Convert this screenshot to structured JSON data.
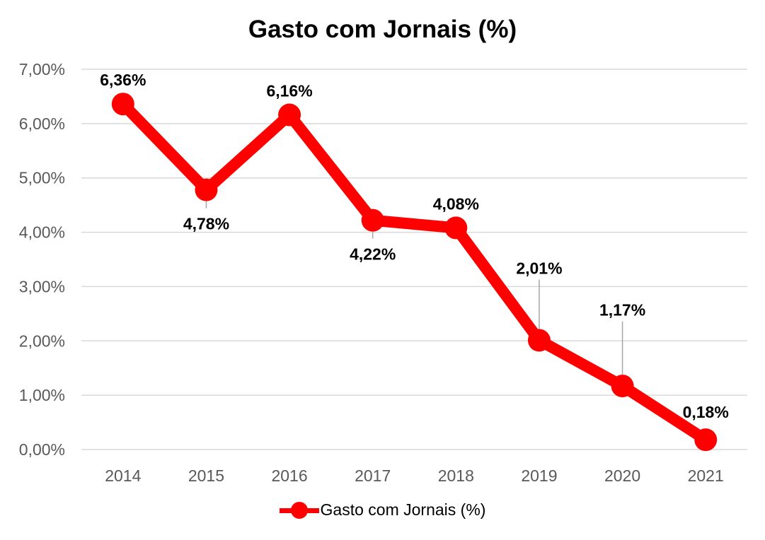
{
  "chart_data": {
    "type": "line",
    "title": "Gasto com Jornais (%)",
    "xlabel": "",
    "ylabel": "",
    "categories": [
      "2014",
      "2015",
      "2016",
      "2017",
      "2018",
      "2019",
      "2020",
      "2021"
    ],
    "series": [
      {
        "name": "Gasto com Jornais (%)",
        "values": [
          6.36,
          4.78,
          6.16,
          4.22,
          4.08,
          2.01,
          1.17,
          0.18
        ],
        "labels": [
          "6,36%",
          "4,78%",
          "6,16%",
          "4,22%",
          "4,08%",
          "2,01%",
          "1,17%",
          "0,18%"
        ],
        "color": "#ff0000"
      }
    ],
    "ylim": [
      0,
      7
    ],
    "yticks": [
      "0,00%",
      "1,00%",
      "2,00%",
      "3,00%",
      "4,00%",
      "5,00%",
      "6,00%",
      "7,00%"
    ],
    "grid": true,
    "legend_position": "bottom",
    "label_placement": [
      "above",
      "below",
      "above",
      "below",
      "above",
      "above",
      "above",
      "above"
    ]
  }
}
